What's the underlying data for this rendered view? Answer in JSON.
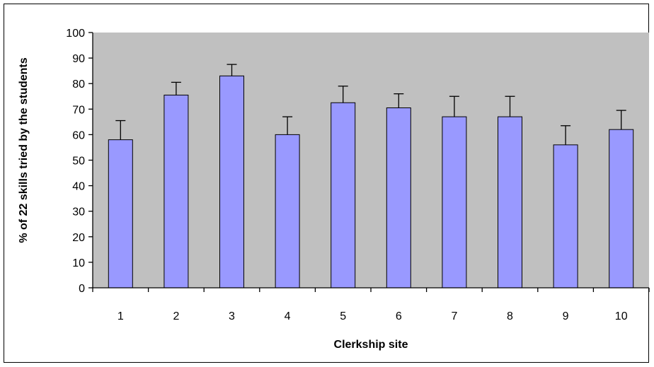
{
  "chart_data": {
    "type": "bar",
    "title": "",
    "xlabel": "Clerkship site",
    "ylabel": "% of 22 skills tried by the students",
    "categories": [
      "1",
      "2",
      "3",
      "4",
      "5",
      "6",
      "7",
      "8",
      "9",
      "10"
    ],
    "values": [
      58,
      75.5,
      83,
      60,
      72.5,
      70.5,
      67,
      67,
      56,
      62
    ],
    "error_upper": [
      7.5,
      5,
      4.5,
      7,
      6.5,
      5.5,
      8,
      8,
      7.5,
      7.5
    ],
    "ylim": [
      0,
      100
    ],
    "yticks": [
      "0",
      "10",
      "20",
      "30",
      "40",
      "50",
      "60",
      "70",
      "80",
      "90",
      "100"
    ],
    "grid": false,
    "colors": {
      "bar": "#9999ff",
      "plot_background": "#c0c0c0",
      "axis": "#000000"
    }
  }
}
